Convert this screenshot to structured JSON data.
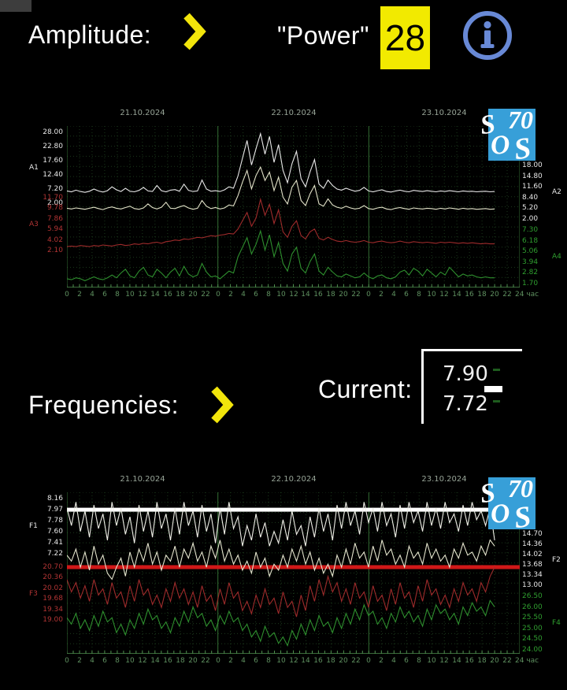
{
  "header": {
    "amplitude_label": "Amplitude:",
    "power_label": "\"Power\"",
    "power_value": "28"
  },
  "mid": {
    "frequencies_label": "Frequencies:",
    "current_label": "Current:",
    "current_high": "7.90",
    "current_low": "7.72"
  },
  "logo": {
    "letters": [
      "S",
      "70",
      "O",
      "S"
    ],
    "bg_color": "#379fd8"
  },
  "colors": {
    "background": "#000000",
    "accent_yellow": "#f2ea00",
    "info_blue": "#6889d6",
    "logo_blue": "#379fd8",
    "grid_green": "#1b381b",
    "day_line_green": "#357035",
    "hour_label_green": "#5f9160",
    "date_label_gray": "#97a497",
    "ref_line_white": "#ffffff",
    "ref_line_red": "#d01818"
  },
  "chart_data": [
    {
      "id": "amplitude",
      "type": "line",
      "title": "Amplitude",
      "legend_position": "none",
      "grid": true,
      "x_axis": {
        "dates": [
          "21.10.2024",
          "22.10.2024",
          "23.10.2024"
        ],
        "hour_ticks": [
          "0",
          "2",
          "4",
          "6",
          "8",
          "10",
          "12",
          "14",
          "16",
          "18",
          "20",
          "22",
          "0",
          "2",
          "4",
          "6",
          "8",
          "10",
          "12",
          "14",
          "16",
          "18",
          "20",
          "22",
          "0",
          "2",
          "4",
          "6",
          "8",
          "10",
          "12",
          "14",
          "16",
          "18",
          "20",
          "22",
          "24 час"
        ],
        "total_hours": 72,
        "data_span_hours": 68
      },
      "axes": [
        {
          "name": "A1",
          "side": "left",
          "color": "#e8e8e8",
          "min": 2.0,
          "max": 28.0,
          "tick_labels": [
            "28.00",
            "22.80",
            "17.60",
            "12.40",
            "7.20",
            "2.00"
          ]
        },
        {
          "name": "A2",
          "side": "right",
          "color": "#e8e8e8",
          "min": 2.0,
          "max": 18.0,
          "tick_labels": [
            "18.00",
            "14.80",
            "11.60",
            "8.40",
            "5.20",
            "2.00"
          ]
        },
        {
          "name": "A3",
          "side": "left",
          "color": "#b13434",
          "min": 2.1,
          "max": 11.7,
          "tick_labels": [
            "11.70",
            "9.78",
            "7.86",
            "5.94",
            "4.02",
            "2.10"
          ]
        },
        {
          "name": "A4",
          "side": "right",
          "color": "#2f9e2f",
          "min": 1.7,
          "max": 7.3,
          "tick_labels": [
            "7.30",
            "6.18",
            "5.06",
            "3.94",
            "2.82",
            "1.70"
          ]
        }
      ],
      "series": [
        {
          "name": "A1",
          "axis": "A1",
          "color": "#e8e8e8",
          "values": [
            6.5,
            6.2,
            6.8,
            6.3,
            6.0,
            6.4,
            7.2,
            6.5,
            6.1,
            6.6,
            8.0,
            6.9,
            6.3,
            7.5,
            6.4,
            6.2,
            6.7,
            7.8,
            6.5,
            6.3,
            8.5,
            6.6,
            6.2,
            6.8,
            7.0,
            6.4,
            9.0,
            6.7,
            6.3,
            6.5,
            10.5,
            7.2,
            6.4,
            6.6,
            6.3,
            6.9,
            8.0,
            7.5,
            12.0,
            18.5,
            25.0,
            16.0,
            22.0,
            27.5,
            20.0,
            26.5,
            17.0,
            23.5,
            14.0,
            9.5,
            16.5,
            21.0,
            11.0,
            8.0,
            13.5,
            18.0,
            9.0,
            7.5,
            10.5,
            8.5,
            7.2,
            6.8,
            7.5,
            6.9,
            6.4,
            6.7,
            7.8,
            6.5,
            6.2,
            6.6,
            6.9,
            6.3,
            6.1,
            6.5,
            6.8,
            6.4,
            6.2,
            6.7,
            6.5,
            6.3,
            6.6,
            6.4,
            6.2,
            6.5,
            6.3,
            6.6,
            6.4,
            6.2,
            6.5,
            6.3,
            6.4,
            6.2,
            6.3,
            6.4,
            6.2,
            6.3
          ]
        },
        {
          "name": "A2",
          "axis": "A2",
          "color": "#e2e2c8",
          "values": [
            5.2,
            5.0,
            5.3,
            5.1,
            4.9,
            5.2,
            5.5,
            5.1,
            4.8,
            5.3,
            5.6,
            5.2,
            5.0,
            5.4,
            5.8,
            5.1,
            4.9,
            5.3,
            6.5,
            5.4,
            5.0,
            5.5,
            7.0,
            5.2,
            5.1,
            5.6,
            6.0,
            5.3,
            4.9,
            5.2,
            7.5,
            5.8,
            5.1,
            5.4,
            5.0,
            5.3,
            6.2,
            5.9,
            9.0,
            13.0,
            16.5,
            11.0,
            15.0,
            17.5,
            13.5,
            16.0,
            10.5,
            14.5,
            8.5,
            6.5,
            11.5,
            13.5,
            7.5,
            6.0,
            9.5,
            12.0,
            6.5,
            5.8,
            8.0,
            6.2,
            5.5,
            5.2,
            5.8,
            5.3,
            5.0,
            5.2,
            6.0,
            5.1,
            4.9,
            5.3,
            5.5,
            5.0,
            4.8,
            5.2,
            5.4,
            5.1,
            4.9,
            5.3,
            5.1,
            5.0,
            5.2,
            5.1,
            4.9,
            5.2,
            5.0,
            5.3,
            5.1,
            4.9,
            5.2,
            5.0,
            5.1,
            4.9,
            5.0,
            5.1,
            4.9,
            5.0
          ]
        },
        {
          "name": "A3",
          "axis": "A3",
          "color": "#9e2b2b",
          "values": [
            2.8,
            2.9,
            2.8,
            3.0,
            2.9,
            2.8,
            3.0,
            2.9,
            3.1,
            3.0,
            2.9,
            3.1,
            3.2,
            3.0,
            3.1,
            3.3,
            3.2,
            3.4,
            3.3,
            3.5,
            3.6,
            3.4,
            3.7,
            3.8,
            4.0,
            3.9,
            4.2,
            4.1,
            4.3,
            4.5,
            4.4,
            4.6,
            4.8,
            4.7,
            4.9,
            5.0,
            5.2,
            5.1,
            6.0,
            7.5,
            9.0,
            6.5,
            8.0,
            11.4,
            8.5,
            10.5,
            7.0,
            9.5,
            5.5,
            4.5,
            6.5,
            7.5,
            4.8,
            4.2,
            5.5,
            6.0,
            4.3,
            4.0,
            4.5,
            4.1,
            3.8,
            3.7,
            3.9,
            3.7,
            3.6,
            3.7,
            3.9,
            3.6,
            3.5,
            3.7,
            3.8,
            3.6,
            3.5,
            3.6,
            3.8,
            3.6,
            3.5,
            3.7,
            3.6,
            3.5,
            3.6,
            3.5,
            3.4,
            3.6,
            3.5,
            3.6,
            3.5,
            3.4,
            3.5,
            3.4,
            3.5,
            3.4,
            3.3,
            3.4,
            3.3,
            3.3
          ]
        },
        {
          "name": "A4",
          "axis": "A4",
          "color": "#2e8f2e",
          "values": [
            2.2,
            2.1,
            2.3,
            2.2,
            2.0,
            2.2,
            2.4,
            2.2,
            2.1,
            2.3,
            2.6,
            2.3,
            2.8,
            3.2,
            2.5,
            2.3,
            3.0,
            3.4,
            2.6,
            2.4,
            3.2,
            2.8,
            2.3,
            2.9,
            3.3,
            2.5,
            3.5,
            2.7,
            2.4,
            2.6,
            3.8,
            2.9,
            2.4,
            2.5,
            2.2,
            2.6,
            3.0,
            2.8,
            4.5,
            5.5,
            6.5,
            4.8,
            5.8,
            7.2,
            5.2,
            6.8,
            4.5,
            6.0,
            3.8,
            3.0,
            4.8,
            5.5,
            3.3,
            2.8,
            4.0,
            4.8,
            3.0,
            2.6,
            3.4,
            2.9,
            2.5,
            2.4,
            2.7,
            2.5,
            2.3,
            2.4,
            2.8,
            2.4,
            2.2,
            2.5,
            2.6,
            2.3,
            2.2,
            2.4,
            2.9,
            3.1,
            2.6,
            3.3,
            3.0,
            2.5,
            3.2,
            2.8,
            2.4,
            2.9,
            2.6,
            3.4,
            2.9,
            2.4,
            2.7,
            2.5,
            2.6,
            2.4,
            2.3,
            2.4,
            2.3,
            2.3
          ]
        }
      ]
    },
    {
      "id": "frequencies",
      "type": "line",
      "title": "Frequencies",
      "legend_position": "none",
      "grid": true,
      "x_axis": {
        "dates": [
          "21.10.2024",
          "22.10.2024",
          "23.10.2024"
        ],
        "hour_ticks": [
          "0",
          "2",
          "4",
          "6",
          "8",
          "10",
          "12",
          "14",
          "16",
          "18",
          "20",
          "22",
          "0",
          "2",
          "4",
          "6",
          "8",
          "10",
          "12",
          "14",
          "16",
          "18",
          "20",
          "22",
          "0",
          "2",
          "4",
          "6",
          "8",
          "10",
          "12",
          "14",
          "16",
          "18",
          "20",
          "22",
          "24 час"
        ],
        "total_hours": 72,
        "data_span_hours": 68
      },
      "axes": [
        {
          "name": "F1",
          "side": "left",
          "color": "#e8e8e8",
          "min": 7.22,
          "max": 8.16,
          "tick_labels": [
            "8.16",
            "7.97",
            "7.78",
            "7.60",
            "7.41",
            "7.22"
          ]
        },
        {
          "name": "F2",
          "side": "right",
          "color": "#e8e8e8",
          "min": 13.0,
          "max": 14.7,
          "tick_labels": [
            "14.70",
            "14.36",
            "14.02",
            "13.68",
            "13.34",
            "13.00"
          ]
        },
        {
          "name": "F3",
          "side": "left",
          "color": "#b13434",
          "min": 19.0,
          "max": 20.7,
          "tick_labels": [
            "20.70",
            "20.36",
            "20.02",
            "19.68",
            "19.34",
            "19.00"
          ]
        },
        {
          "name": "F4",
          "side": "right",
          "color": "#2f9e2f",
          "min": 24.0,
          "max": 26.5,
          "tick_labels": [
            "26.50",
            "26.00",
            "25.50",
            "25.00",
            "24.50",
            "24.00"
          ]
        }
      ],
      "ref_lines": [
        {
          "axis": "F1",
          "value": 7.97,
          "color": "#ffffff"
        },
        {
          "axis": "F3",
          "value": 20.7,
          "color": "#d01818"
        }
      ],
      "series": [
        {
          "name": "F1",
          "axis": "F1",
          "color": "#efefe7",
          "values": [
            8.0,
            7.7,
            8.1,
            7.6,
            7.95,
            7.5,
            8.05,
            7.65,
            7.9,
            7.45,
            8.1,
            7.7,
            8.0,
            7.55,
            7.85,
            7.4,
            8.05,
            7.6,
            7.95,
            7.5,
            8.1,
            7.65,
            7.9,
            7.45,
            8.0,
            7.55,
            8.1,
            7.7,
            7.95,
            7.5,
            8.05,
            7.6,
            7.9,
            7.4,
            8.0,
            7.55,
            8.1,
            7.65,
            7.85,
            7.35,
            7.7,
            7.45,
            7.9,
            7.5,
            7.75,
            7.35,
            7.6,
            7.4,
            7.8,
            7.45,
            7.95,
            7.55,
            7.7,
            7.35,
            7.85,
            7.5,
            8.0,
            7.6,
            7.9,
            7.45,
            8.05,
            7.65,
            8.1,
            7.7,
            7.95,
            7.55,
            8.1,
            7.75,
            8.0,
            7.6,
            8.1,
            7.7,
            7.9,
            7.5,
            8.05,
            7.65,
            8.1,
            7.75,
            7.95,
            7.6,
            8.1,
            7.7,
            8.0,
            7.65,
            8.1,
            7.75,
            7.9,
            7.6,
            8.05,
            7.7,
            8.1,
            7.8,
            7.95,
            7.7,
            8.0,
            7.45
          ]
        },
        {
          "name": "F2",
          "axis": "F2",
          "color": "#e4e4cd",
          "values": [
            14.0,
            13.8,
            14.2,
            13.6,
            14.1,
            13.5,
            14.3,
            13.7,
            14.0,
            13.4,
            13.2,
            13.6,
            13.9,
            13.3,
            14.1,
            13.6,
            14.2,
            13.8,
            14.4,
            13.7,
            14.1,
            13.5,
            14.0,
            13.8,
            14.3,
            13.6,
            14.2,
            13.9,
            14.4,
            13.8,
            14.1,
            13.6,
            14.3,
            13.9,
            14.5,
            13.8,
            14.2,
            13.7,
            14.0,
            13.5,
            13.8,
            13.4,
            14.1,
            13.6,
            13.9,
            13.3,
            13.7,
            13.5,
            14.0,
            13.6,
            14.2,
            13.8,
            14.3,
            13.7,
            14.1,
            13.5,
            13.9,
            13.4,
            13.7,
            13.3,
            14.0,
            13.6,
            14.2,
            13.7,
            14.4,
            13.9,
            14.1,
            13.6,
            14.3,
            13.8,
            14.5,
            14.0,
            14.2,
            13.7,
            14.0,
            13.6,
            14.3,
            13.9,
            14.1,
            13.7,
            14.4,
            13.9,
            14.2,
            13.8,
            14.0,
            13.6,
            14.2,
            13.9,
            14.4,
            14.0,
            14.1,
            13.8,
            14.3,
            14.0,
            14.5,
            14.3
          ]
        },
        {
          "name": "F3",
          "axis": "F3",
          "color": "#9e2b2b",
          "values": [
            20.3,
            19.9,
            20.2,
            19.7,
            20.1,
            19.6,
            20.3,
            19.8,
            20.0,
            19.5,
            20.2,
            19.7,
            19.9,
            19.4,
            20.1,
            19.6,
            20.3,
            19.8,
            20.0,
            19.5,
            19.8,
            19.4,
            20.0,
            19.6,
            20.2,
            19.7,
            20.0,
            19.5,
            19.9,
            19.4,
            20.1,
            19.6,
            19.8,
            19.3,
            20.0,
            19.5,
            20.2,
            19.7,
            19.9,
            19.3,
            19.6,
            19.2,
            19.8,
            19.4,
            20.0,
            19.5,
            19.7,
            19.2,
            19.9,
            19.4,
            19.6,
            19.1,
            19.8,
            19.3,
            20.1,
            19.6,
            20.3,
            19.8,
            20.4,
            19.9,
            20.2,
            19.6,
            20.0,
            19.5,
            20.2,
            19.7,
            19.9,
            19.4,
            20.1,
            19.6,
            19.8,
            19.3,
            20.0,
            19.5,
            20.2,
            19.7,
            19.9,
            19.4,
            20.1,
            19.6,
            20.3,
            19.8,
            20.0,
            19.5,
            19.8,
            19.4,
            20.0,
            19.6,
            20.2,
            19.8,
            20.0,
            19.6,
            20.2,
            19.9,
            20.4,
            20.7
          ]
        },
        {
          "name": "F4",
          "axis": "F4",
          "color": "#2e8f2e",
          "values": [
            25.5,
            25.2,
            25.7,
            25.0,
            25.4,
            24.9,
            25.6,
            25.1,
            25.8,
            25.3,
            25.5,
            24.8,
            25.2,
            24.7,
            25.4,
            25.0,
            25.7,
            25.2,
            25.9,
            25.4,
            25.6,
            25.0,
            25.3,
            24.8,
            25.5,
            25.1,
            25.8,
            25.3,
            26.0,
            25.5,
            25.7,
            25.1,
            25.4,
            24.9,
            25.6,
            25.2,
            25.8,
            25.3,
            25.5,
            24.9,
            25.2,
            24.6,
            24.9,
            24.4,
            25.1,
            24.6,
            24.8,
            24.3,
            24.6,
            24.2,
            24.9,
            24.5,
            25.2,
            24.7,
            25.4,
            24.9,
            25.6,
            25.1,
            25.3,
            24.8,
            25.5,
            25.0,
            25.7,
            25.2,
            25.9,
            25.4,
            26.1,
            25.6,
            25.8,
            25.2,
            25.5,
            25.0,
            25.7,
            25.3,
            26.0,
            25.5,
            25.8,
            25.3,
            25.6,
            25.1,
            25.9,
            25.4,
            26.1,
            25.7,
            25.9,
            25.4,
            25.7,
            25.2,
            26.0,
            25.6,
            26.2,
            25.8,
            26.0,
            25.6,
            26.3,
            26.0
          ]
        }
      ]
    }
  ]
}
